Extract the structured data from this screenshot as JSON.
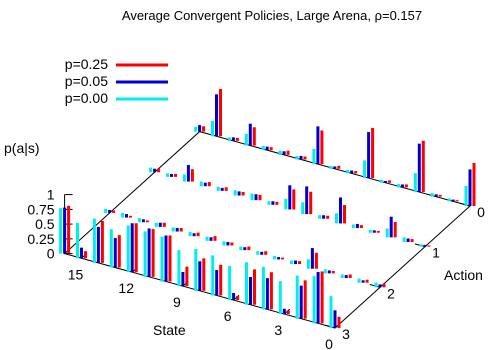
{
  "chart_data": {
    "type": "bar",
    "title": "Average Convergent Policies, Large Arena, ρ=0.157",
    "zlabel": "p(a|s)",
    "xlabel": "State",
    "ylabel": "Action",
    "z_ticks": [
      "1",
      "0.75",
      "0.5",
      "0.25",
      "0"
    ],
    "z_tick_values": [
      1,
      0.75,
      0.5,
      0.25,
      0
    ],
    "state_ticks": [
      "15",
      "12",
      "9",
      "6",
      "3",
      "0"
    ],
    "state_tick_values": [
      15,
      12,
      9,
      6,
      3,
      0
    ],
    "action_ticks": [
      "0",
      "1",
      "2",
      "3"
    ],
    "action_tick_values": [
      0,
      1,
      2,
      3
    ],
    "zlim": [
      0,
      1
    ],
    "legend_position": "top-left",
    "states": [
      0,
      1,
      2,
      3,
      4,
      5,
      6,
      7,
      8,
      9,
      10,
      11,
      12,
      13,
      14,
      15,
      16
    ],
    "actions": [
      0,
      1,
      2,
      3
    ],
    "series": [
      {
        "name": "p=0.25",
        "color": "#ff0000",
        "values": [
          [
            0.73,
            0.02,
            0.06,
            0.19
          ],
          [
            0.02,
            0.05,
            0.05,
            0.88
          ],
          [
            0.03,
            0.26,
            0.06,
            0.65
          ],
          [
            0.87,
            0.03,
            0.04,
            0.06
          ],
          [
            0.05,
            0.05,
            0.27,
            0.63
          ],
          [
            0.04,
            0.31,
            0.05,
            0.6
          ],
          [
            0.85,
            0.05,
            0.03,
            0.07
          ],
          [
            0.04,
            0.38,
            0.06,
            0.52
          ],
          [
            0.05,
            0.34,
            0.06,
            0.55
          ],
          [
            0.57,
            0.05,
            0.05,
            0.33
          ],
          [
            0.05,
            0.09,
            0.08,
            0.78
          ],
          [
            0.07,
            0.06,
            0.06,
            0.81
          ],
          [
            0.05,
            0.06,
            0.06,
            0.83
          ],
          [
            0.31,
            0.07,
            0.07,
            0.55
          ],
          [
            0.05,
            0.21,
            0.03,
            0.71
          ],
          [
            0.8,
            0.05,
            0.03,
            0.12
          ],
          [
            0.09,
            0.06,
            0.04,
            0.81
          ]
        ]
      },
      {
        "name": "p=0.05",
        "color": "#0000cc",
        "values": [
          [
            0.62,
            0.03,
            0.05,
            0.3
          ],
          [
            0.03,
            0.06,
            0.04,
            0.87
          ],
          [
            0.04,
            0.35,
            0.05,
            0.56
          ],
          [
            0.82,
            0.04,
            0.05,
            0.09
          ],
          [
            0.05,
            0.07,
            0.35,
            0.53
          ],
          [
            0.03,
            0.44,
            0.06,
            0.47
          ],
          [
            0.78,
            0.06,
            0.04,
            0.12
          ],
          [
            0.05,
            0.47,
            0.05,
            0.43
          ],
          [
            0.04,
            0.41,
            0.05,
            0.5
          ],
          [
            0.64,
            0.06,
            0.06,
            0.24
          ],
          [
            0.06,
            0.1,
            0.06,
            0.78
          ],
          [
            0.06,
            0.07,
            0.05,
            0.82
          ],
          [
            0.06,
            0.05,
            0.06,
            0.83
          ],
          [
            0.37,
            0.06,
            0.07,
            0.5
          ],
          [
            0.06,
            0.28,
            0.05,
            0.61
          ],
          [
            0.71,
            0.05,
            0.06,
            0.18
          ],
          [
            0.11,
            0.06,
            0.05,
            0.78
          ]
        ]
      },
      {
        "name": "p=0.00",
        "color": "#00eeee",
        "values": [
          [
            0.34,
            0.04,
            0.08,
            0.54
          ],
          [
            0.05,
            0.08,
            0.07,
            0.8
          ],
          [
            0.06,
            0.15,
            0.06,
            0.73
          ],
          [
            0.32,
            0.05,
            0.07,
            0.56
          ],
          [
            0.06,
            0.06,
            0.16,
            0.72
          ],
          [
            0.05,
            0.17,
            0.06,
            0.72
          ],
          [
            0.3,
            0.06,
            0.06,
            0.58
          ],
          [
            0.06,
            0.2,
            0.06,
            0.68
          ],
          [
            0.05,
            0.18,
            0.06,
            0.71
          ],
          [
            0.26,
            0.06,
            0.07,
            0.61
          ],
          [
            0.06,
            0.11,
            0.07,
            0.76
          ],
          [
            0.07,
            0.09,
            0.07,
            0.77
          ],
          [
            0.07,
            0.07,
            0.07,
            0.79
          ],
          [
            0.2,
            0.08,
            0.07,
            0.65
          ],
          [
            0.06,
            0.12,
            0.07,
            0.75
          ],
          [
            0.26,
            0.06,
            0.08,
            0.6
          ],
          [
            0.08,
            0.08,
            0.07,
            0.77
          ]
        ]
      }
    ]
  }
}
